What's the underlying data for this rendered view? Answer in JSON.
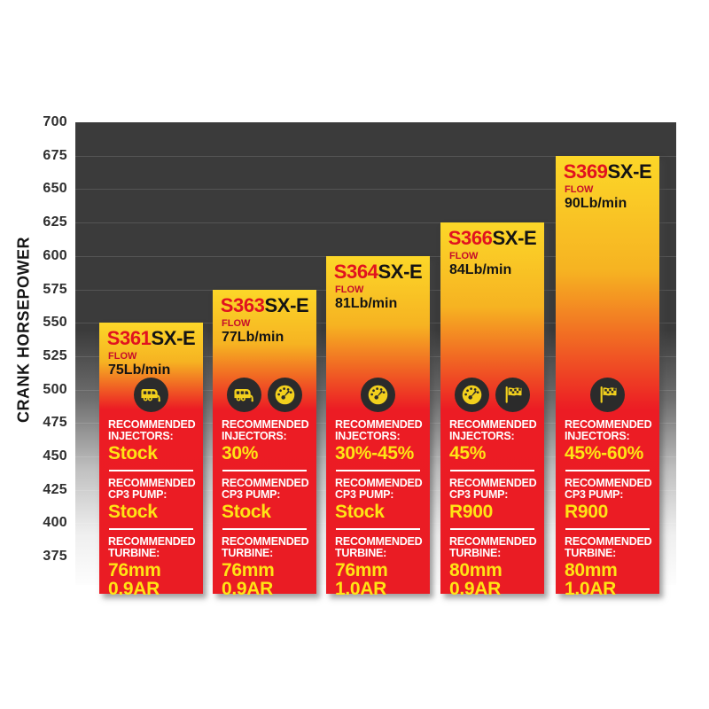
{
  "chart_data": {
    "type": "bar",
    "title": "",
    "xlabel": "",
    "ylabel": "CRANK HORSEPOWER",
    "ylim": [
      375,
      700
    ],
    "yticks": [
      700,
      675,
      650,
      625,
      600,
      575,
      550,
      525,
      500,
      475,
      450,
      425,
      400,
      375
    ],
    "grid": true,
    "legend": "none",
    "categories": [
      "S361SX-E",
      "S363SX-E",
      "S364SX-E",
      "S366SX-E",
      "S369SX-E"
    ],
    "values": [
      550,
      575,
      600,
      625,
      675
    ],
    "labels": {
      "flow": "FLOW",
      "injectors_line1": "RECOMMENDED",
      "injectors_line2": "INJECTORS:",
      "cp3_line1": "RECOMMENDED",
      "cp3_line2": "CP3 PUMP:",
      "turbine_line1": "RECOMMENDED",
      "turbine_line2": "TURBINE:"
    },
    "bars": [
      {
        "model_prefix": "S361",
        "model_suffix": "SX-E",
        "flow": "75Lb/min",
        "crank_horsepower": 550,
        "icons": [
          "camper-icon"
        ],
        "injectors": "Stock",
        "cp3_pump": "Stock",
        "turbine_line1": "76mm",
        "turbine_line2": "0.9AR"
      },
      {
        "model_prefix": "S363",
        "model_suffix": "SX-E",
        "flow": "77Lb/min",
        "crank_horsepower": 575,
        "icons": [
          "camper-icon",
          "gauge-icon"
        ],
        "injectors": "30%",
        "cp3_pump": "Stock",
        "turbine_line1": "76mm",
        "turbine_line2": "0.9AR"
      },
      {
        "model_prefix": "S364",
        "model_suffix": "SX-E",
        "flow": "81Lb/min",
        "crank_horsepower": 600,
        "icons": [
          "gauge-icon"
        ],
        "injectors": "30%-45%",
        "cp3_pump": "Stock",
        "turbine_line1": "76mm",
        "turbine_line2": "1.0AR"
      },
      {
        "model_prefix": "S366",
        "model_suffix": "SX-E",
        "flow": "84Lb/min",
        "crank_horsepower": 625,
        "icons": [
          "gauge-icon",
          "flag-icon"
        ],
        "injectors": "45%",
        "cp3_pump": "R900",
        "turbine_line1": "80mm",
        "turbine_line2": "0.9AR"
      },
      {
        "model_prefix": "S369",
        "model_suffix": "SX-E",
        "flow": "90Lb/min",
        "crank_horsepower": 675,
        "icons": [
          "flag-icon"
        ],
        "injectors": "45%-60%",
        "cp3_pump": "R900",
        "turbine_line1": "80mm",
        "turbine_line2": "1.0AR"
      }
    ],
    "colors": {
      "bar_gradient_top": "#fcd728",
      "bar_gradient_mid": "#f29a1e",
      "bar_gradient_red": "#ec1c24",
      "plot_background_top": "#3b3b3b",
      "plot_background_bottom": "#fdfdfd",
      "model_prefix_red": "#e1121f",
      "model_suffix_black": "#141414",
      "value_yellow": "#ffe414",
      "label_white": "#ffffff",
      "icon_circle": "#2b2b2b",
      "icon_glyph": "#f2d01d"
    }
  }
}
